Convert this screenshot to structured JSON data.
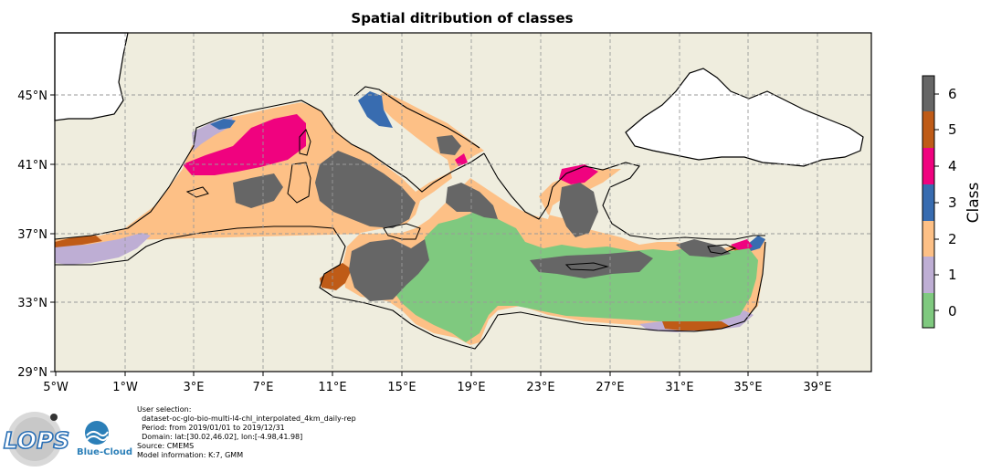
{
  "title": "Spatial ditribution of classes",
  "x_ticks": [
    "5°W",
    "1°W",
    "3°E",
    "7°E",
    "11°E",
    "15°E",
    "19°E",
    "23°E",
    "27°E",
    "31°E",
    "35°E",
    "39°E"
  ],
  "y_ticks": [
    "45°N",
    "41°N",
    "37°N",
    "33°N",
    "29°N"
  ],
  "colorbar": {
    "label": "Class",
    "ticks": [
      "6",
      "5",
      "4",
      "3",
      "2",
      "1",
      "0"
    ],
    "colors": [
      "#666666",
      "#bf5b17",
      "#f0027f",
      "#386cb0",
      "#fdc086",
      "#beaed4",
      "#7fc97f"
    ]
  },
  "colors": {
    "land": "#efedde",
    "no_data": "#ffffff",
    "class0": "#7fc97f",
    "class1": "#beaed4",
    "class2": "#fdc086",
    "class3": "#386cb0",
    "class4": "#f0027f",
    "class5": "#bf5b17",
    "class6": "#666666"
  },
  "info": {
    "line1": "User selection:",
    "line2": "  dataset-oc-glo-bio-multi-l4-chl_interpolated_4km_daily-rep",
    "line3": "  Period: from 2019/01/01 to 2019/12/31",
    "line4": "  Domain: lat:[30.02,46.02], lon:[-4.98,41.98]",
    "line5": "Source: CMEMS",
    "line6": "Model information: K:7, GMM"
  },
  "logos": {
    "lops": "LOPS",
    "bluecloud": "Blue-Cloud"
  },
  "icons": {
    "lops_logo": "lops-logo-icon",
    "bluecloud_logo": "blue-cloud-logo-icon"
  }
}
